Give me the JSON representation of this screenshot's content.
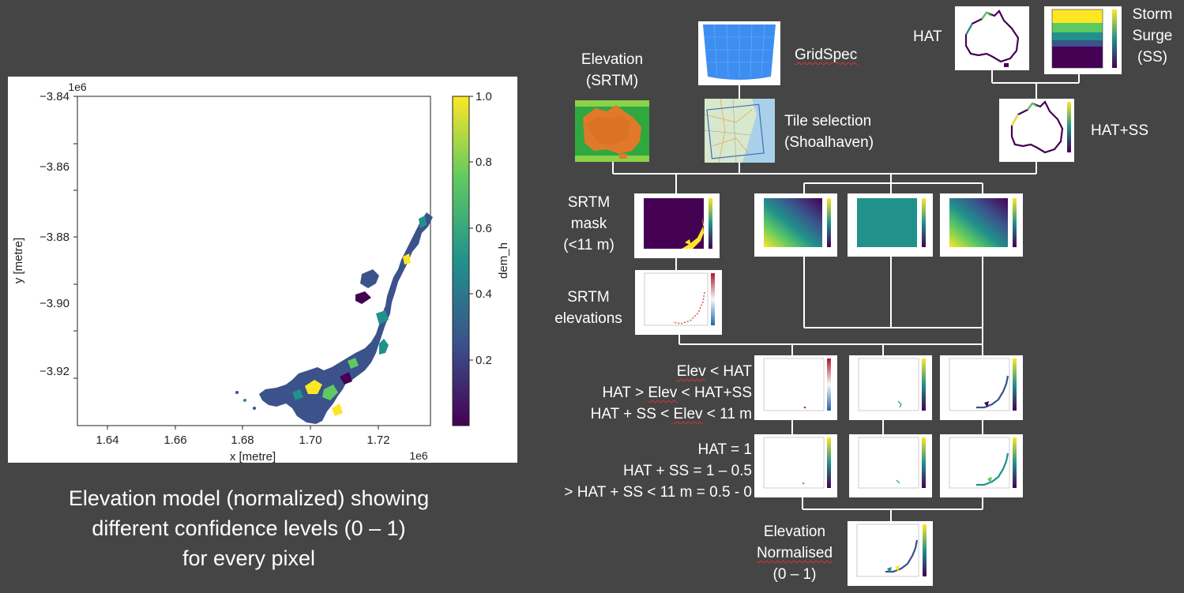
{
  "main_plot": {
    "y_ticks": [
      "−3.84",
      "−3.86",
      "−3.88",
      "−3.90",
      "−3.92"
    ],
    "x_ticks": [
      "1.64",
      "1.66",
      "1.68",
      "1.70",
      "1.72"
    ],
    "y_offset": "1e6",
    "x_offset": "1e6",
    "xlabel": "x [metre]",
    "ylabel": "y [metre]",
    "cbar_ticks": [
      "1.0",
      "0.8",
      "0.6",
      "0.4",
      "0.2"
    ],
    "cbar_label": "dem_h",
    "colormap": "viridis"
  },
  "caption": {
    "line1": "Elevation model (normalized) showing",
    "line2": "different confidence levels (0 – 1)",
    "line3": "for every pixel"
  },
  "flow": {
    "elevation": {
      "line1": "Elevation",
      "line2": "(SRTM)"
    },
    "gridspec": "GridSpec",
    "tile": {
      "line1": "Tile selection",
      "line2": "(Shoalhaven)"
    },
    "hat": "HAT",
    "storm": {
      "line1": "Storm",
      "line2": "Surge",
      "line3": "(SS)"
    },
    "hat_ss": "HAT+SS",
    "srtm_mask": {
      "line1": "SRTM",
      "line2": "mask",
      "line3": "(<11 m)"
    },
    "srtm_elev": {
      "line1": "SRTM",
      "line2": "elevations"
    },
    "cond": {
      "c1_a": "Elev",
      "c1_b": " < HAT",
      "c2_a": "HAT > ",
      "c2_b": "Elev",
      "c2_c": " < HAT+SS",
      "c3_a": "HAT + SS < ",
      "c3_b": "Elev",
      "c3_c": " < 11 m"
    },
    "assign": {
      "a1": "HAT = 1",
      "a2": "HAT + SS = 1 – 0.5",
      "a3": "> HAT + SS < 11 m = 0.5 - 0"
    },
    "final": {
      "line1": "Elevation",
      "line2": "Normalised",
      "line3": "(0 – 1)"
    }
  },
  "colors": {
    "background": "#454545",
    "connector": "#ffffff",
    "viridis_dark": "#440154",
    "viridis_mid": "#21918c",
    "viridis_light": "#fde725",
    "ocean": "#3d8ef0",
    "srtm_orange": "#e07a2a"
  }
}
